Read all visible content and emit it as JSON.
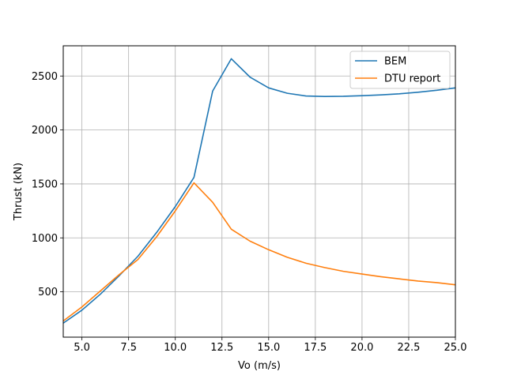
{
  "chart_data": {
    "type": "line",
    "title": "",
    "xlabel": "Vo (m/s)",
    "ylabel": "Thrust (kN)",
    "xlim": [
      4,
      25
    ],
    "ylim": [
      80,
      2780
    ],
    "grid": true,
    "legend_position": "top-right",
    "xticks": [
      5.0,
      7.5,
      10.0,
      12.5,
      15.0,
      17.5,
      20.0,
      22.5,
      25.0
    ],
    "xtick_labels": [
      "5.0",
      "7.5",
      "10.0",
      "12.5",
      "15.0",
      "17.5",
      "20.0",
      "22.5",
      "25.0"
    ],
    "yticks": [
      500,
      1000,
      1500,
      2000,
      2500
    ],
    "ytick_labels": [
      "500",
      "1000",
      "1500",
      "2000",
      "2500"
    ],
    "series": [
      {
        "name": "BEM",
        "color": "#1f77b4",
        "x": [
          4,
          5,
          6,
          7,
          8,
          9,
          10,
          11,
          12,
          13,
          14,
          15,
          16,
          17,
          18,
          19,
          20,
          21,
          22,
          23,
          24,
          25
        ],
        "y": [
          210,
          330,
          480,
          650,
          830,
          1050,
          1290,
          1560,
          2360,
          2660,
          2490,
          2390,
          2340,
          2315,
          2310,
          2312,
          2318,
          2325,
          2335,
          2350,
          2368,
          2390
        ]
      },
      {
        "name": "DTU report",
        "color": "#ff7f0e",
        "x": [
          4,
          5,
          6,
          7,
          8,
          9,
          10,
          11,
          12,
          13,
          14,
          15,
          16,
          17,
          18,
          19,
          20,
          21,
          22,
          23,
          24,
          25
        ],
        "y": [
          230,
          360,
          510,
          660,
          800,
          1010,
          1250,
          1510,
          1330,
          1080,
          970,
          890,
          820,
          765,
          725,
          690,
          665,
          640,
          620,
          600,
          585,
          565
        ]
      }
    ]
  }
}
